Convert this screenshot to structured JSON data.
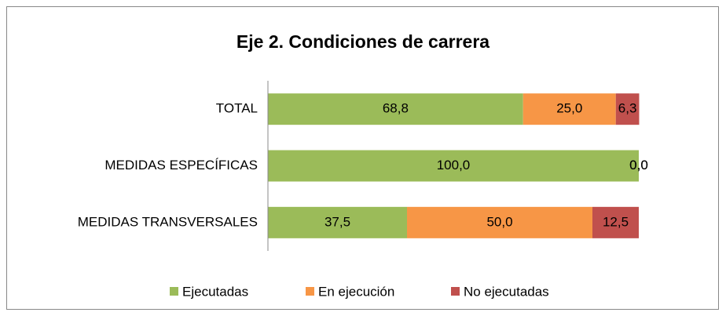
{
  "chart_data": {
    "type": "stacked_barh",
    "title": "Eje 2. Condiciones de carrera",
    "categories": [
      "TOTAL",
      "MEDIDAS ESPECÍFICAS",
      "MEDIDAS TRANSVERSALES"
    ],
    "series": [
      {
        "name": "Ejecutadas",
        "color": "#9bbb59",
        "values": [
          68.8,
          100,
          37.5
        ],
        "value_labels": [
          "68,8",
          "100,0",
          "37,5"
        ]
      },
      {
        "name": "En ejecución",
        "color": "#f79646",
        "values": [
          25,
          0,
          50
        ],
        "value_labels": [
          "25,0",
          "0,0",
          "50,0"
        ]
      },
      {
        "name": "No ejecutadas",
        "color": "#c0504d",
        "values": [
          6.3,
          0,
          12.5
        ],
        "value_labels": [
          "6,3",
          "0,0",
          "12,5"
        ]
      }
    ],
    "xlim": [
      0,
      100
    ],
    "legend": "bottom"
  }
}
